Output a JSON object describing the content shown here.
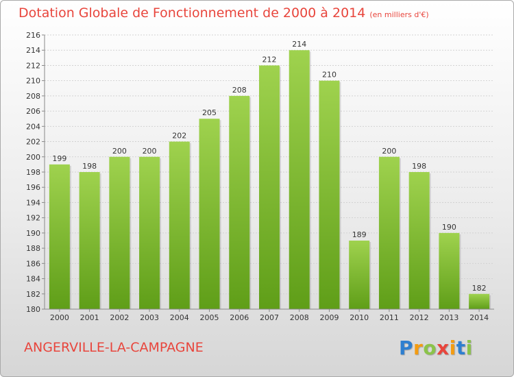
{
  "header": {
    "title": "Dotation Globale de Fonctionnement de 2000 à 2014",
    "subtitle": "(en milliers d'€)"
  },
  "footer": {
    "commune": "ANGERVILLE-LA-CAMPAGNE",
    "logo_letters": [
      "P",
      "r",
      "o",
      "x",
      "i",
      "t",
      "i"
    ],
    "logo_colors": [
      "#2e7fd0",
      "#f39c12",
      "#8bc34a",
      "#e8453c",
      "#f39c12",
      "#2e7fd0",
      "#8bc34a"
    ]
  },
  "chart_data": {
    "type": "bar",
    "categories": [
      "2000",
      "2001",
      "2002",
      "2003",
      "2004",
      "2005",
      "2006",
      "2007",
      "2008",
      "2009",
      "2010",
      "2011",
      "2012",
      "2013",
      "2014"
    ],
    "values": [
      199,
      198,
      200,
      200,
      202,
      205,
      208,
      212,
      214,
      210,
      189,
      200,
      198,
      190,
      182
    ],
    "ylim": [
      180,
      216
    ],
    "yticks": [
      180,
      182,
      184,
      186,
      188,
      190,
      192,
      194,
      196,
      198,
      200,
      202,
      204,
      206,
      208,
      210,
      212,
      214,
      216
    ],
    "grid": true,
    "bar_color_top": "#9fd24e",
    "bar_color_bottom": "#5f9e18"
  }
}
